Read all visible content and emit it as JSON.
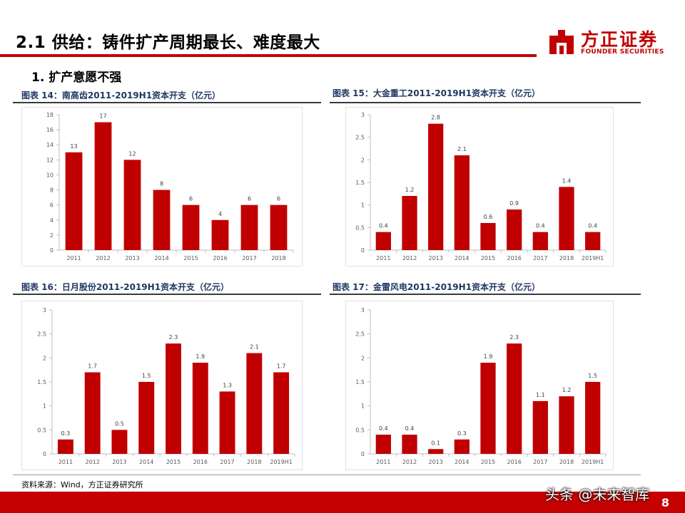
{
  "header": {
    "title": "2.1 供给：铸件扩产周期最长、难度最大",
    "logo_cn": "方正证券",
    "logo_en": "FOUNDER SECURITIES",
    "brand_color": "#c00000"
  },
  "section": {
    "subtitle": "1. 扩产意愿不强"
  },
  "chart_data": [
    {
      "type": "bar",
      "title": "图表 14：南高齿2011-2019H1资本开支（亿元）",
      "categories": [
        "2011",
        "2012",
        "2013",
        "2014",
        "2015",
        "2016",
        "2017",
        "2018"
      ],
      "values": [
        13,
        17,
        12,
        8,
        6,
        4,
        6,
        6
      ],
      "ylim": [
        0,
        18
      ],
      "yticks": [
        "0",
        "2",
        "4",
        "6",
        "8",
        "10",
        "12",
        "14",
        "16",
        "18"
      ],
      "ytick_values": [
        0,
        2,
        4,
        6,
        8,
        10,
        12,
        14,
        16,
        18
      ],
      "xlabel": "",
      "ylabel": "",
      "grid": false,
      "legend": "none",
      "color": "#c00000"
    },
    {
      "type": "bar",
      "title": "图表 15：大金重工2011-2019H1资本开支（亿元）",
      "categories": [
        "2011",
        "2012",
        "2013",
        "2014",
        "2015",
        "2016",
        "2017",
        "2018",
        "2019H1"
      ],
      "values": [
        0.4,
        1.2,
        2.8,
        2.1,
        0.6,
        0.9,
        0.4,
        1.4,
        0.4
      ],
      "ylim": [
        0,
        3
      ],
      "yticks": [
        "0",
        "0.5",
        "1",
        "1.5",
        "2",
        "2.5",
        "3"
      ],
      "ytick_values": [
        0,
        0.5,
        1,
        1.5,
        2,
        2.5,
        3
      ],
      "xlabel": "",
      "ylabel": "",
      "grid": false,
      "legend": "none",
      "color": "#c00000"
    },
    {
      "type": "bar",
      "title": "图表 16：日月股份2011-2019H1资本开支（亿元）",
      "categories": [
        "2011",
        "2012",
        "2013",
        "2014",
        "2015",
        "2016",
        "2017",
        "2018",
        "2019H1"
      ],
      "values": [
        0.3,
        1.7,
        0.5,
        1.5,
        2.3,
        1.9,
        1.3,
        2.1,
        1.7
      ],
      "ylim": [
        0,
        3
      ],
      "yticks": [
        "0",
        "0.5",
        "1",
        "1.5",
        "2",
        "2.5",
        "3"
      ],
      "ytick_values": [
        0,
        0.5,
        1,
        1.5,
        2,
        2.5,
        3
      ],
      "xlabel": "",
      "ylabel": "",
      "grid": false,
      "legend": "none",
      "color": "#c00000"
    },
    {
      "type": "bar",
      "title": "图表 17：金雷风电2011-2019H1资本开支（亿元）",
      "categories": [
        "2011",
        "2012",
        "2013",
        "2014",
        "2015",
        "2016",
        "2017",
        "2018",
        "2019H1"
      ],
      "values": [
        0.4,
        0.4,
        0.1,
        0.3,
        1.9,
        2.3,
        1.1,
        1.2,
        1.5
      ],
      "ylim": [
        0,
        3
      ],
      "yticks": [
        "0",
        "0.5",
        "1",
        "1.5",
        "2",
        "2.5",
        "3"
      ],
      "ytick_values": [
        0,
        0.5,
        1,
        1.5,
        2,
        2.5,
        3
      ],
      "xlabel": "",
      "ylabel": "",
      "grid": false,
      "legend": "none",
      "color": "#c00000"
    }
  ],
  "footer": {
    "source": "资料来源：Wind，方正证券研究所",
    "page_number": "8",
    "watermark": "头条 @未来智库"
  }
}
